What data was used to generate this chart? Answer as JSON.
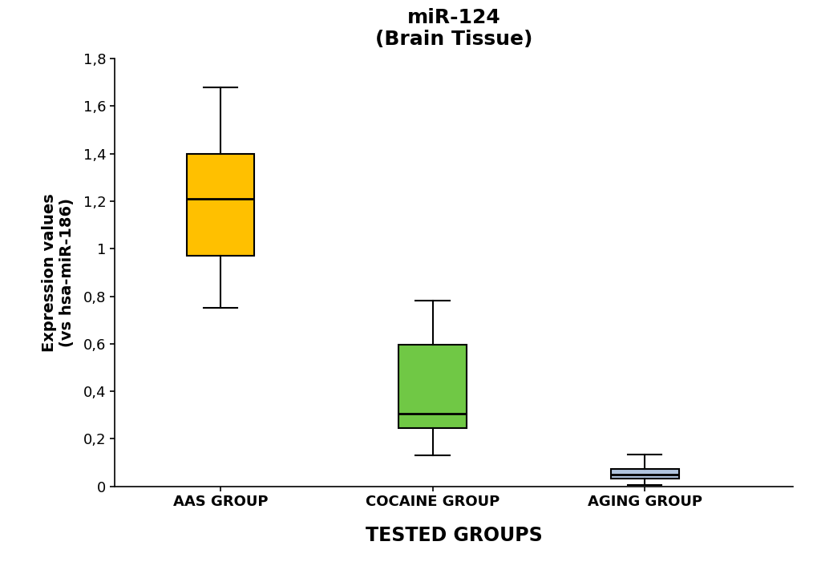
{
  "title_line1": "miR-124",
  "title_line2": "(Brain Tissue)",
  "xlabel": "TESTED GROUPS",
  "ylabel": "Expression values\n(vs hsa-miR-186)",
  "groups": [
    "AAS GROUP",
    "COCAINE GROUP",
    "AGING GROUP"
  ],
  "boxes": [
    {
      "whisker_low": 0.75,
      "q1": 0.97,
      "median": 1.21,
      "q3": 1.4,
      "whisker_high": 1.68,
      "color": "#FFC000",
      "edge_color": "#000000"
    },
    {
      "whisker_low": 0.13,
      "q1": 0.245,
      "median": 0.305,
      "q3": 0.595,
      "whisker_high": 0.78,
      "color": "#70C845",
      "edge_color": "#000000"
    },
    {
      "whisker_low": 0.005,
      "q1": 0.033,
      "median": 0.048,
      "q3": 0.072,
      "whisker_high": 0.135,
      "color": "#B0C4DE",
      "edge_color": "#000000"
    }
  ],
  "ylim": [
    0,
    1.8
  ],
  "yticks": [
    0.0,
    0.2,
    0.4,
    0.6,
    0.8,
    1.0,
    1.2,
    1.4,
    1.6,
    1.8
  ],
  "ytick_labels": [
    "0",
    "0,2",
    "0,4",
    "0,6",
    "0,8",
    "1",
    "1,2",
    "1,4",
    "1,6",
    "1,8"
  ],
  "background_color": "#ffffff",
  "box_width": 0.32,
  "linewidth": 1.5,
  "title_fontsize": 18,
  "label_fontsize": 14,
  "tick_fontsize": 13,
  "xlabel_fontsize": 17
}
